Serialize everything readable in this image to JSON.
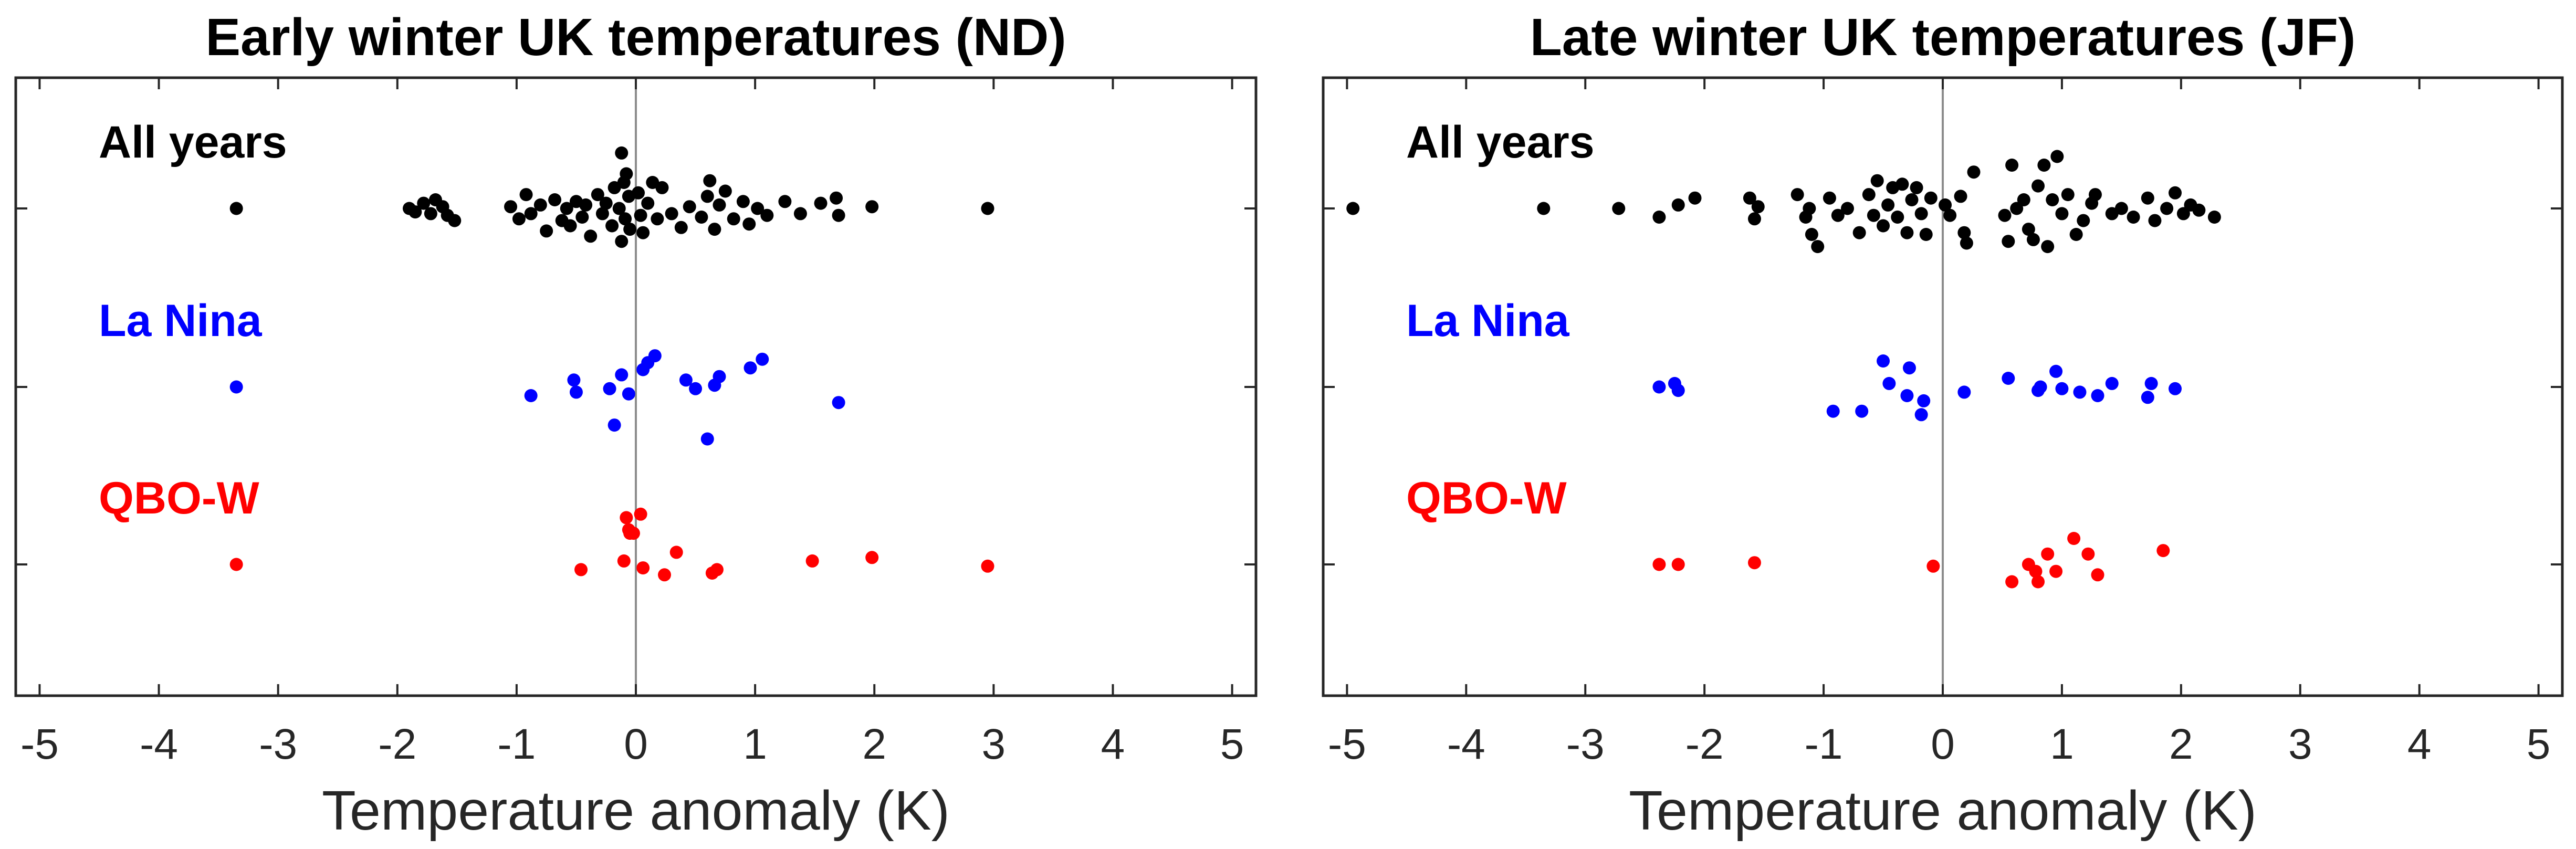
{
  "chart_data": [
    {
      "type": "scatter",
      "title": "Early winter UK temperatures (ND)",
      "xlabel": "Temperature anomaly (K)",
      "xlim": [
        -5.2,
        5.2
      ],
      "x_ticks": [
        "-5",
        "-4",
        "-3",
        "-2",
        "-1",
        "0",
        "1",
        "2",
        "3",
        "4",
        "5"
      ],
      "zero_line": 0,
      "groups": [
        {
          "name": "All years",
          "color": "#000000",
          "points": [
            {
              "x": -3.35,
              "y": 0.0
            },
            {
              "x": -1.9,
              "y": 0.0
            },
            {
              "x": -1.85,
              "y": -0.02
            },
            {
              "x": -1.78,
              "y": 0.03
            },
            {
              "x": -1.72,
              "y": -0.03
            },
            {
              "x": -1.68,
              "y": 0.05
            },
            {
              "x": -1.62,
              "y": 0.01
            },
            {
              "x": -1.58,
              "y": -0.04
            },
            {
              "x": -1.52,
              "y": -0.07
            },
            {
              "x": -1.05,
              "y": 0.01
            },
            {
              "x": -0.98,
              "y": -0.06
            },
            {
              "x": -0.92,
              "y": 0.08
            },
            {
              "x": -0.88,
              "y": -0.03
            },
            {
              "x": -0.8,
              "y": 0.02
            },
            {
              "x": -0.75,
              "y": -0.13
            },
            {
              "x": -0.68,
              "y": 0.05
            },
            {
              "x": -0.62,
              "y": -0.07
            },
            {
              "x": -0.58,
              "y": 0.0
            },
            {
              "x": -0.55,
              "y": -0.1
            },
            {
              "x": -0.5,
              "y": 0.04
            },
            {
              "x": -0.45,
              "y": -0.05
            },
            {
              "x": -0.42,
              "y": 0.02
            },
            {
              "x": -0.38,
              "y": -0.16
            },
            {
              "x": -0.32,
              "y": 0.08
            },
            {
              "x": -0.28,
              "y": -0.03
            },
            {
              "x": -0.25,
              "y": 0.03
            },
            {
              "x": -0.2,
              "y": -0.1
            },
            {
              "x": -0.18,
              "y": 0.12
            },
            {
              "x": -0.14,
              "y": 0.0
            },
            {
              "x": -0.12,
              "y": -0.19
            },
            {
              "x": -0.1,
              "y": 0.15
            },
            {
              "x": -0.09,
              "y": -0.06
            },
            {
              "x": -0.08,
              "y": 0.2
            },
            {
              "x": -0.06,
              "y": 0.07
            },
            {
              "x": -0.05,
              "y": -0.12
            },
            {
              "x": -0.12,
              "y": 0.32
            },
            {
              "x": 0.02,
              "y": 0.09
            },
            {
              "x": 0.04,
              "y": -0.04
            },
            {
              "x": 0.06,
              "y": -0.14
            },
            {
              "x": 0.1,
              "y": 0.03
            },
            {
              "x": 0.14,
              "y": 0.15
            },
            {
              "x": 0.18,
              "y": -0.06
            },
            {
              "x": 0.22,
              "y": 0.12
            },
            {
              "x": 0.3,
              "y": -0.03
            },
            {
              "x": 0.38,
              "y": -0.11
            },
            {
              "x": 0.45,
              "y": 0.01
            },
            {
              "x": 0.55,
              "y": -0.05
            },
            {
              "x": 0.6,
              "y": 0.07
            },
            {
              "x": 0.62,
              "y": 0.16
            },
            {
              "x": 0.66,
              "y": -0.12
            },
            {
              "x": 0.7,
              "y": 0.02
            },
            {
              "x": 0.75,
              "y": 0.1
            },
            {
              "x": 0.82,
              "y": -0.06
            },
            {
              "x": 0.9,
              "y": 0.04
            },
            {
              "x": 0.95,
              "y": -0.09
            },
            {
              "x": 1.02,
              "y": 0.0
            },
            {
              "x": 1.1,
              "y": -0.04
            },
            {
              "x": 1.25,
              "y": 0.04
            },
            {
              "x": 1.38,
              "y": -0.03
            },
            {
              "x": 1.55,
              "y": 0.03
            },
            {
              "x": 1.68,
              "y": 0.06
            },
            {
              "x": 1.7,
              "y": -0.04
            },
            {
              "x": 1.98,
              "y": 0.01
            },
            {
              "x": 2.95,
              "y": 0.0
            }
          ]
        },
        {
          "name": "La Nina",
          "color": "#0000ff",
          "points": [
            {
              "x": -3.35,
              "y": 0.0
            },
            {
              "x": -0.88,
              "y": -0.05
            },
            {
              "x": -0.52,
              "y": 0.04
            },
            {
              "x": -0.5,
              "y": -0.03
            },
            {
              "x": -0.22,
              "y": -0.01
            },
            {
              "x": -0.18,
              "y": -0.22
            },
            {
              "x": -0.12,
              "y": 0.07
            },
            {
              "x": -0.06,
              "y": -0.04
            },
            {
              "x": 0.1,
              "y": 0.14
            },
            {
              "x": 0.06,
              "y": 0.1
            },
            {
              "x": 0.16,
              "y": 0.18
            },
            {
              "x": 0.42,
              "y": 0.04
            },
            {
              "x": 0.5,
              "y": -0.01
            },
            {
              "x": 0.6,
              "y": -0.3
            },
            {
              "x": 0.66,
              "y": 0.01
            },
            {
              "x": 0.7,
              "y": 0.06
            },
            {
              "x": 0.96,
              "y": 0.11
            },
            {
              "x": 1.06,
              "y": 0.16
            },
            {
              "x": 1.7,
              "y": -0.09
            }
          ]
        },
        {
          "name": "QBO-W",
          "color": "#ff0000",
          "points": [
            {
              "x": -3.35,
              "y": 0.0
            },
            {
              "x": -0.46,
              "y": -0.03
            },
            {
              "x": -0.08,
              "y": 0.27
            },
            {
              "x": -0.06,
              "y": 0.2
            },
            {
              "x": -0.05,
              "y": 0.18
            },
            {
              "x": -0.1,
              "y": 0.02
            },
            {
              "x": -0.02,
              "y": 0.18
            },
            {
              "x": 0.04,
              "y": 0.29
            },
            {
              "x": 0.06,
              "y": -0.02
            },
            {
              "x": 0.24,
              "y": -0.06
            },
            {
              "x": 0.34,
              "y": 0.07
            },
            {
              "x": 0.64,
              "y": -0.05
            },
            {
              "x": 0.68,
              "y": -0.03
            },
            {
              "x": 1.48,
              "y": 0.02
            },
            {
              "x": 1.98,
              "y": 0.04
            },
            {
              "x": 2.95,
              "y": -0.01
            }
          ]
        }
      ]
    },
    {
      "type": "scatter",
      "title": "Late winter UK temperatures (JF)",
      "xlabel": "Temperature anomaly (K)",
      "xlim": [
        -5.2,
        5.2
      ],
      "x_ticks": [
        "-5",
        "-4",
        "-3",
        "-2",
        "-1",
        "0",
        "1",
        "2",
        "3",
        "4",
        "5"
      ],
      "zero_line": 0,
      "groups": [
        {
          "name": "All years",
          "color": "#000000",
          "points": [
            {
              "x": -4.95,
              "y": 0.0
            },
            {
              "x": -3.35,
              "y": 0.0
            },
            {
              "x": -2.72,
              "y": 0.0
            },
            {
              "x": -2.38,
              "y": -0.05
            },
            {
              "x": -2.22,
              "y": 0.02
            },
            {
              "x": -2.08,
              "y": 0.06
            },
            {
              "x": -1.62,
              "y": 0.06
            },
            {
              "x": -1.58,
              "y": -0.06
            },
            {
              "x": -1.55,
              "y": 0.01
            },
            {
              "x": -1.22,
              "y": 0.08
            },
            {
              "x": -1.15,
              "y": -0.05
            },
            {
              "x": -1.12,
              "y": 0.0
            },
            {
              "x": -1.1,
              "y": -0.15
            },
            {
              "x": -1.05,
              "y": -0.22
            },
            {
              "x": -0.95,
              "y": 0.06
            },
            {
              "x": -0.88,
              "y": -0.04
            },
            {
              "x": -0.8,
              "y": 0.0
            },
            {
              "x": -0.7,
              "y": -0.14
            },
            {
              "x": -0.62,
              "y": 0.08
            },
            {
              "x": -0.58,
              "y": -0.04
            },
            {
              "x": -0.55,
              "y": 0.16
            },
            {
              "x": -0.5,
              "y": -0.1
            },
            {
              "x": -0.46,
              "y": 0.02
            },
            {
              "x": -0.42,
              "y": 0.12
            },
            {
              "x": -0.38,
              "y": -0.05
            },
            {
              "x": -0.34,
              "y": 0.14
            },
            {
              "x": -0.3,
              "y": -0.14
            },
            {
              "x": -0.26,
              "y": 0.05
            },
            {
              "x": -0.22,
              "y": 0.12
            },
            {
              "x": -0.18,
              "y": -0.03
            },
            {
              "x": -0.14,
              "y": -0.15
            },
            {
              "x": -0.1,
              "y": 0.06
            },
            {
              "x": 0.02,
              "y": 0.02
            },
            {
              "x": 0.06,
              "y": -0.04
            },
            {
              "x": 0.15,
              "y": 0.07
            },
            {
              "x": 0.18,
              "y": -0.14
            },
            {
              "x": 0.2,
              "y": -0.2
            },
            {
              "x": 0.26,
              "y": 0.21
            },
            {
              "x": 0.52,
              "y": -0.04
            },
            {
              "x": 0.55,
              "y": -0.19
            },
            {
              "x": 0.58,
              "y": 0.25
            },
            {
              "x": 0.62,
              "y": 0.0
            },
            {
              "x": 0.68,
              "y": 0.05
            },
            {
              "x": 0.72,
              "y": -0.12
            },
            {
              "x": 0.76,
              "y": -0.18
            },
            {
              "x": 0.8,
              "y": 0.13
            },
            {
              "x": 0.85,
              "y": 0.25
            },
            {
              "x": 0.88,
              "y": -0.22
            },
            {
              "x": 0.92,
              "y": 0.05
            },
            {
              "x": 0.96,
              "y": 0.3
            },
            {
              "x": 1.0,
              "y": -0.03
            },
            {
              "x": 1.05,
              "y": 0.08
            },
            {
              "x": 1.12,
              "y": -0.15
            },
            {
              "x": 1.18,
              "y": -0.07
            },
            {
              "x": 1.25,
              "y": 0.03
            },
            {
              "x": 1.28,
              "y": 0.08
            },
            {
              "x": 1.42,
              "y": -0.03
            },
            {
              "x": 1.5,
              "y": 0.0
            },
            {
              "x": 1.6,
              "y": -0.05
            },
            {
              "x": 1.72,
              "y": 0.06
            },
            {
              "x": 1.78,
              "y": -0.07
            },
            {
              "x": 1.88,
              "y": 0.0
            },
            {
              "x": 1.95,
              "y": 0.09
            },
            {
              "x": 2.02,
              "y": -0.03
            },
            {
              "x": 2.08,
              "y": 0.02
            },
            {
              "x": 2.15,
              "y": -0.01
            },
            {
              "x": 2.28,
              "y": -0.05
            }
          ]
        },
        {
          "name": "La Nina",
          "color": "#0000ff",
          "points": [
            {
              "x": -2.38,
              "y": 0.0
            },
            {
              "x": -2.25,
              "y": 0.02
            },
            {
              "x": -2.22,
              "y": -0.02
            },
            {
              "x": -0.92,
              "y": -0.14
            },
            {
              "x": -0.68,
              "y": -0.14
            },
            {
              "x": -0.5,
              "y": 0.15
            },
            {
              "x": -0.45,
              "y": 0.02
            },
            {
              "x": -0.28,
              "y": 0.11
            },
            {
              "x": -0.3,
              "y": -0.05
            },
            {
              "x": -0.16,
              "y": -0.08
            },
            {
              "x": -0.18,
              "y": -0.16
            },
            {
              "x": 0.18,
              "y": -0.03
            },
            {
              "x": 0.55,
              "y": 0.05
            },
            {
              "x": 0.8,
              "y": -0.02
            },
            {
              "x": 0.82,
              "y": 0.0
            },
            {
              "x": 0.95,
              "y": 0.09
            },
            {
              "x": 1.0,
              "y": -0.01
            },
            {
              "x": 1.15,
              "y": -0.03
            },
            {
              "x": 1.3,
              "y": -0.05
            },
            {
              "x": 1.42,
              "y": 0.02
            },
            {
              "x": 1.72,
              "y": -0.06
            },
            {
              "x": 1.75,
              "y": 0.02
            },
            {
              "x": 1.95,
              "y": -0.01
            }
          ]
        },
        {
          "name": "QBO-W",
          "color": "#ff0000",
          "points": [
            {
              "x": -2.38,
              "y": 0.0
            },
            {
              "x": -2.22,
              "y": 0.0
            },
            {
              "x": -1.58,
              "y": 0.01
            },
            {
              "x": -0.08,
              "y": -0.01
            },
            {
              "x": 0.58,
              "y": -0.1
            },
            {
              "x": 0.72,
              "y": 0.0
            },
            {
              "x": 0.78,
              "y": -0.04
            },
            {
              "x": 0.8,
              "y": -0.1
            },
            {
              "x": 0.88,
              "y": 0.06
            },
            {
              "x": 0.95,
              "y": -0.04
            },
            {
              "x": 1.1,
              "y": 0.15
            },
            {
              "x": 1.22,
              "y": 0.06
            },
            {
              "x": 1.3,
              "y": -0.06
            },
            {
              "x": 1.85,
              "y": 0.08
            }
          ]
        }
      ]
    }
  ]
}
